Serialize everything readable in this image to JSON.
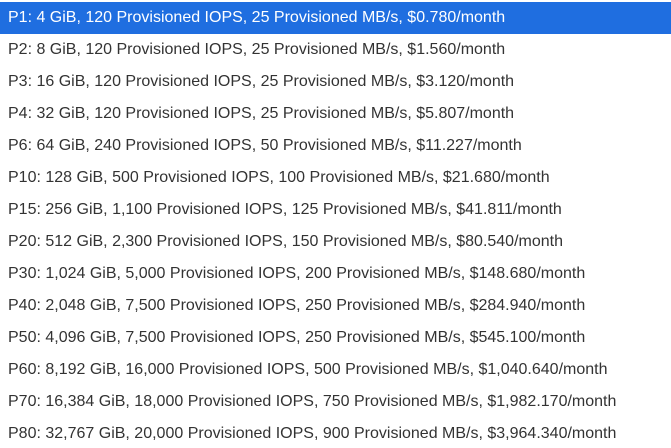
{
  "options": [
    "P1: 4 GiB, 120 Provisioned IOPS, 25 Provisioned MB/s, $0.780/month",
    "P2: 8 GiB, 120 Provisioned IOPS, 25 Provisioned MB/s, $1.560/month",
    "P3: 16 GiB, 120 Provisioned IOPS, 25 Provisioned MB/s, $3.120/month",
    "P4: 32 GiB, 120 Provisioned IOPS, 25 Provisioned MB/s, $5.807/month",
    "P6: 64 GiB, 240 Provisioned IOPS, 50 Provisioned MB/s, $11.227/month",
    "P10: 128 GiB, 500 Provisioned IOPS, 100 Provisioned MB/s, $21.680/month",
    "P15: 256 GiB, 1,100 Provisioned IOPS, 125 Provisioned MB/s, $41.811/month",
    "P20: 512 GiB, 2,300 Provisioned IOPS, 150 Provisioned MB/s, $80.540/month",
    "P30: 1,024 GiB, 5,000 Provisioned IOPS, 200 Provisioned MB/s, $148.680/month",
    "P40: 2,048 GiB, 7,500 Provisioned IOPS, 250 Provisioned MB/s, $284.940/month",
    "P50: 4,096 GiB, 7,500 Provisioned IOPS, 250 Provisioned MB/s, $545.100/month",
    "P60: 8,192 GiB, 16,000 Provisioned IOPS, 500 Provisioned MB/s, $1,040.640/month",
    "P70: 16,384 GiB, 18,000 Provisioned IOPS, 750 Provisioned MB/s, $1,982.170/month",
    "P80: 32,767 GiB, 20,000 Provisioned IOPS, 900 Provisioned MB/s, $3,964.340/month"
  ]
}
